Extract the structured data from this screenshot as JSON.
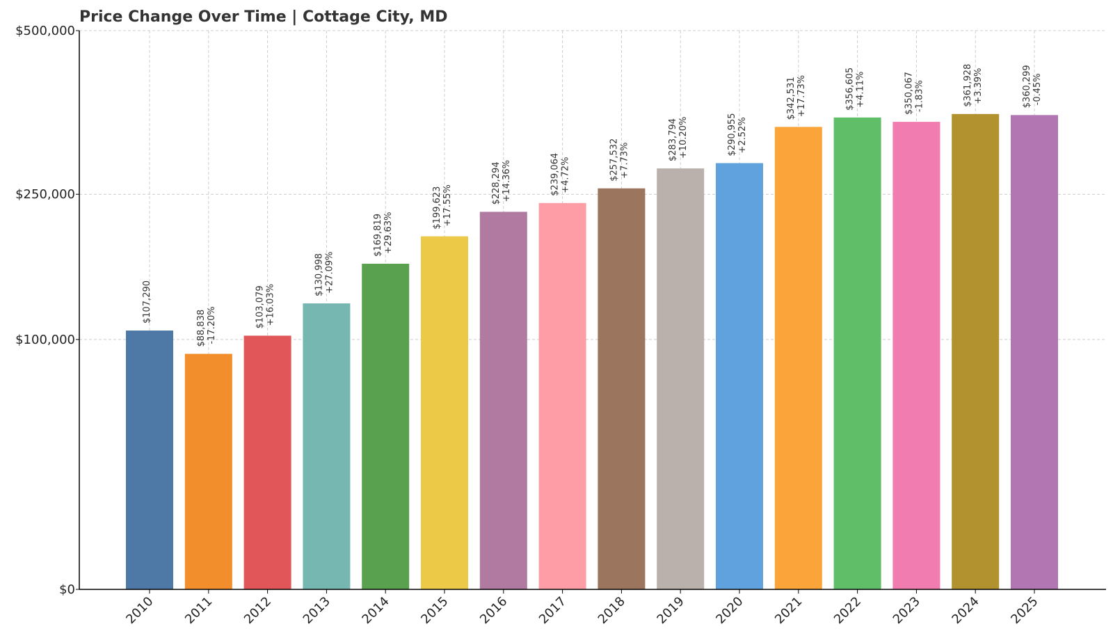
{
  "chart_data": {
    "type": "bar",
    "title": "Price Change Over Time | Cottage City, MD",
    "xlabel": "",
    "ylabel": "",
    "categories": [
      "2010",
      "2011",
      "2012",
      "2013",
      "2014",
      "2015",
      "2016",
      "2017",
      "2018",
      "2019",
      "2020",
      "2021",
      "2022",
      "2023",
      "2024",
      "2025"
    ],
    "values": [
      107290,
      88838,
      103079,
      130998,
      169819,
      199623,
      228294,
      239064,
      257532,
      283794,
      290955,
      342531,
      356605,
      350067,
      361928,
      360299
    ],
    "value_labels": [
      "$107,290",
      "$88,838",
      "$103,079",
      "$130,998",
      "$169,819",
      "$199,623",
      "$228,294",
      "$239,064",
      "$257,532",
      "$283,794",
      "$290,955",
      "$342,531",
      "$356,605",
      "$350,067",
      "$361,928",
      "$360,299"
    ],
    "change_labels": [
      "",
      "-17.20%",
      "+16.03%",
      "+27.09%",
      "+29.63%",
      "+17.55%",
      "+14.36%",
      "+4.72%",
      "+7.73%",
      "+10.20%",
      "+2.52%",
      "+17.73%",
      "+4.11%",
      "-1.83%",
      "+3.39%",
      "-0.45%"
    ],
    "colors": [
      "#4e79a7",
      "#f28e2b",
      "#e15759",
      "#76b7b2",
      "#59a14f",
      "#edc948",
      "#b07aa1",
      "#ff9da7",
      "#9c755f",
      "#bab0ac",
      "#5fa2dd",
      "#faa43a",
      "#60bd68",
      "#f17cb0",
      "#b2912f",
      "#b276b2"
    ],
    "y_scale": "sqrt",
    "ylim": [
      0,
      500000
    ],
    "y_ticks": [
      0,
      100000,
      250000,
      500000
    ],
    "y_tick_labels": [
      "$0",
      "$100,000",
      "$250,000",
      "$500,000"
    ],
    "grid": true,
    "legend": "none"
  }
}
